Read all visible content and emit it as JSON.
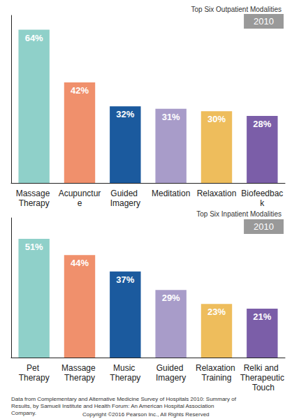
{
  "chart_data": [
    {
      "type": "bar",
      "title": "Top Six Outpatient Modalities",
      "subtitle": "2010",
      "categories": [
        "Massage Therapy",
        "Acupuncture",
        "Guided Imagery",
        "Meditation",
        "Relaxation",
        "Biofeedback"
      ],
      "values": [
        64,
        42,
        32,
        31,
        30,
        28
      ],
      "value_labels": [
        "64%",
        "42%",
        "32%",
        "31%",
        "30%",
        "28%"
      ],
      "colors": [
        "#8fd0c9",
        "#f0906c",
        "#1b5a9e",
        "#a89cc9",
        "#eebd5c",
        "#7b5ea8"
      ],
      "ylim": [
        0,
        70
      ],
      "grid": false,
      "data_labels": true,
      "tick_labels": "x"
    },
    {
      "type": "bar",
      "title": "Top Six Inpatient Modalities",
      "subtitle": "2010",
      "categories": [
        "Pet Therapy",
        "Massage Therapy",
        "Music Therapy",
        "Guided Imagery",
        "Relaxation Training",
        "Relki and Therapeutic Touch"
      ],
      "values": [
        51,
        44,
        37,
        29,
        23,
        21
      ],
      "value_labels": [
        "51%",
        "44%",
        "37%",
        "29%",
        "23%",
        "21%"
      ],
      "colors": [
        "#8fd0c9",
        "#f0906c",
        "#1b5a9e",
        "#a89cc9",
        "#eebd5c",
        "#7b5ea8"
      ],
      "ylim": [
        0,
        60
      ],
      "grid": false,
      "data_labels": true,
      "tick_labels": "x"
    }
  ],
  "source": "Data from Complementary and Alternative Medicine Survey of Hospitals 2010: Summary of Results, by Samueli Institute and Health Forum: An American Hospital Association Company.",
  "copyright": "Copyright ©2016 Pearson Inc., All Rights Reserved"
}
